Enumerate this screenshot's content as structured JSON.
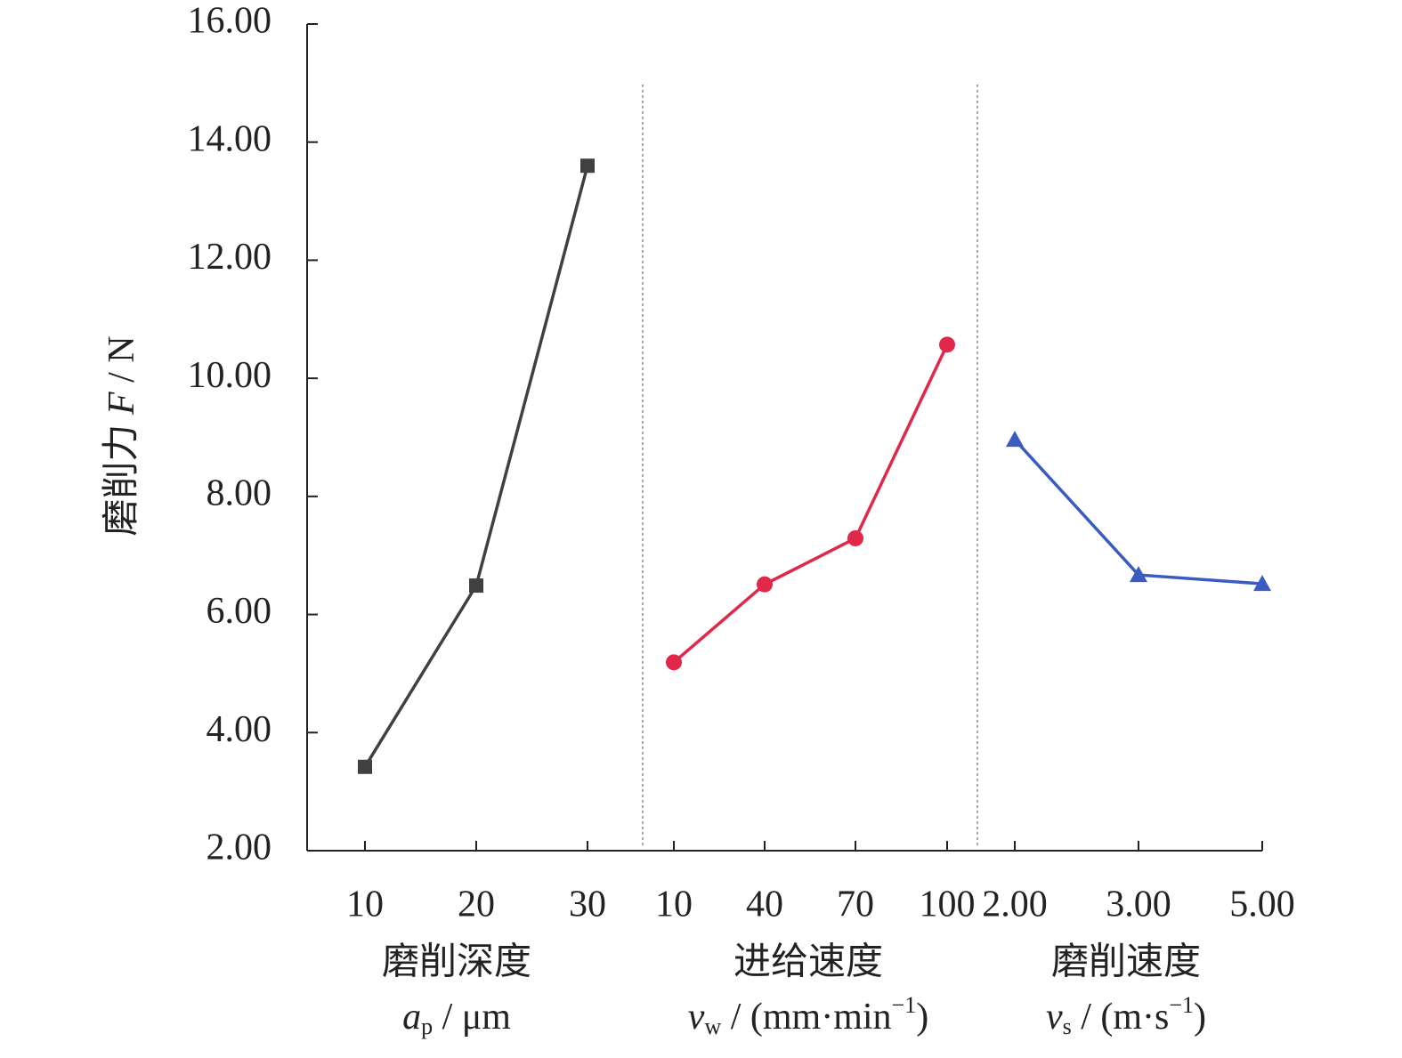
{
  "chart_data": {
    "type": "line",
    "ylabel": [
      "磨削力 ",
      "F",
      " / N"
    ],
    "ylim": [
      2,
      16
    ],
    "yticks": [
      {
        "value": 2,
        "label": "2.00"
      },
      {
        "value": 4,
        "label": "4.00"
      },
      {
        "value": 6,
        "label": "6.00"
      },
      {
        "value": 8,
        "label": "8.00"
      },
      {
        "value": 10,
        "label": "10.00"
      },
      {
        "value": 12,
        "label": "12.00"
      },
      {
        "value": 14,
        "label": "14.00"
      },
      {
        "value": 16,
        "label": "16.00"
      }
    ],
    "series": [
      {
        "name": "磨削深度",
        "unit": [
          {
            "text": "a"
          },
          {
            "text": "p",
            "script": "sub"
          },
          {
            "text": " / μm"
          }
        ],
        "categories": [
          "10",
          "20",
          "30"
        ],
        "values": [
          3.42,
          6.49,
          13.6
        ],
        "color": "#404040",
        "marker": "square"
      },
      {
        "name": "进给速度",
        "unit": [
          {
            "text": "v"
          },
          {
            "text": "w",
            "script": "sub"
          },
          {
            "text": " / (mm·min"
          },
          {
            "text": "−1",
            "script": "sup"
          },
          {
            "text": ")"
          }
        ],
        "categories": [
          "10",
          "40",
          "70",
          "100"
        ],
        "values": [
          5.19,
          6.51,
          7.29,
          10.57
        ],
        "color": "#e0284a",
        "marker": "circle"
      },
      {
        "name": "磨削速度",
        "unit": [
          {
            "text": "v"
          },
          {
            "text": "s",
            "script": "sub"
          },
          {
            "text": " / (m·s"
          },
          {
            "text": "−1",
            "script": "sup"
          },
          {
            "text": ")"
          }
        ],
        "categories": [
          "2.00",
          "3.00",
          "5.00"
        ],
        "values": [
          8.96,
          6.67,
          6.52
        ],
        "color": "#3a5bbf",
        "marker": "triangle"
      }
    ]
  }
}
